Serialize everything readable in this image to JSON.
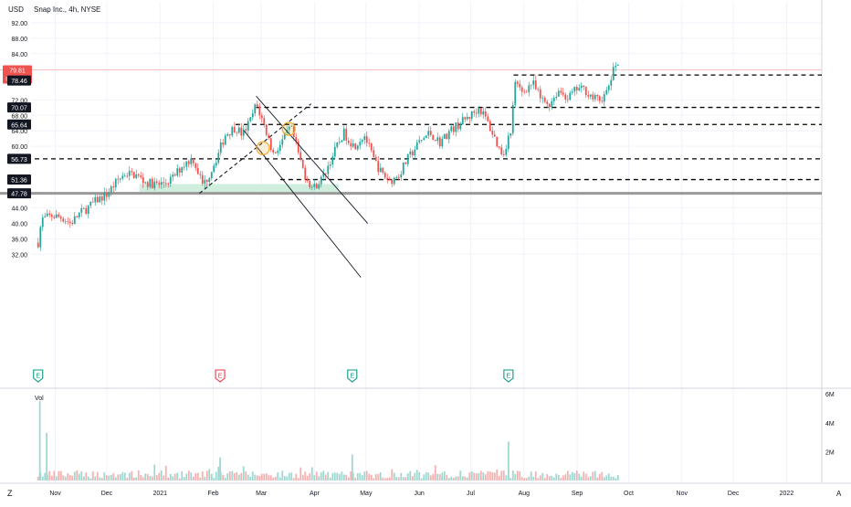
{
  "header": {
    "currency": "USD",
    "symbol_line": "Snap Inc., 4h, NYSE"
  },
  "colors": {
    "up": "#26a69a",
    "down": "#ef5350",
    "vol_up": "#9fd7d1",
    "vol_down": "#f4b1b0",
    "support_zone": "#cfeedd",
    "level_line": "#000000",
    "base_line": "#999999",
    "price_badge": "#ef5350",
    "level_badge": "#131722",
    "earnings_teal": "#089981",
    "earnings_red": "#f23645",
    "circle_marker": "#f5a623"
  },
  "chart_data": {
    "type": "candlestick",
    "title": "Snap Inc., 4h, NYSE",
    "x_ticks": [
      "Nov",
      "Dec",
      "2021",
      "Feb",
      "Mar",
      "Apr",
      "May",
      "Jun",
      "Jul",
      "Aug",
      "Sep",
      "Oct",
      "Nov",
      "Dec",
      "2022"
    ],
    "y_ticks": [
      "32.00",
      "36.00",
      "40.00",
      "44.00",
      "48.00",
      "60.00",
      "64.00",
      "68.00",
      "72.00",
      "84.00",
      "88.00",
      "92.00"
    ],
    "ylim": [
      30,
      93
    ],
    "grid": true,
    "current_price": {
      "value": "79.81",
      "countdown": "01:27:08"
    },
    "levels": [
      {
        "value": "78.46",
        "price": 78.46,
        "style": "dashed"
      },
      {
        "value": "70.07",
        "price": 70.07,
        "style": "dashed"
      },
      {
        "value": "65.64",
        "price": 65.64,
        "style": "dashed"
      },
      {
        "value": "56.73",
        "price": 56.73,
        "style": "dashed"
      },
      {
        "value": "51.36",
        "price": 51.36,
        "style": "dashed"
      },
      {
        "value": "47.78",
        "price": 47.78,
        "style": "solid"
      }
    ],
    "support_zone": {
      "low": 47.78,
      "high": 50.2,
      "from": "2020-12-20",
      "to": "2021-04-15"
    },
    "price_path": [
      [
        "2020-10-22",
        35.0
      ],
      [
        "2020-10-24",
        41.0
      ],
      [
        "2020-10-30",
        42.0
      ],
      [
        "2020-11-05",
        41.5
      ],
      [
        "2020-11-10",
        40.0
      ],
      [
        "2020-11-15",
        42.5
      ],
      [
        "2020-11-20",
        44.0
      ],
      [
        "2020-11-25",
        46.0
      ],
      [
        "2020-12-01",
        47.5
      ],
      [
        "2020-12-07",
        51.0
      ],
      [
        "2020-12-12",
        53.0
      ],
      [
        "2020-12-18",
        52.5
      ],
      [
        "2020-12-24",
        50.5
      ],
      [
        "2021-01-01",
        50.0
      ],
      [
        "2021-01-08",
        51.5
      ],
      [
        "2021-01-14",
        55.0
      ],
      [
        "2021-01-20",
        57.0
      ],
      [
        "2021-01-26",
        50.0
      ],
      [
        "2021-01-29",
        52.0
      ],
      [
        "2021-02-03",
        57.0
      ],
      [
        "2021-02-08",
        63.0
      ],
      [
        "2021-02-14",
        65.0
      ],
      [
        "2021-02-18",
        63.0
      ],
      [
        "2021-02-23",
        67.0
      ],
      [
        "2021-02-26",
        71.0
      ],
      [
        "2021-03-03",
        65.0
      ],
      [
        "2021-03-08",
        58.0
      ],
      [
        "2021-03-13",
        61.0
      ],
      [
        "2021-03-18",
        65.0
      ],
      [
        "2021-03-22",
        59.0
      ],
      [
        "2021-03-26",
        53.0
      ],
      [
        "2021-03-31",
        49.0
      ],
      [
        "2021-04-06",
        52.0
      ],
      [
        "2021-04-12",
        58.0
      ],
      [
        "2021-04-18",
        63.5
      ],
      [
        "2021-04-24",
        60.0
      ],
      [
        "2021-04-30",
        63.0
      ],
      [
        "2021-05-05",
        57.0
      ],
      [
        "2021-05-10",
        53.0
      ],
      [
        "2021-05-15",
        51.0
      ],
      [
        "2021-05-20",
        52.5
      ],
      [
        "2021-05-25",
        56.5
      ],
      [
        "2021-06-01",
        61.0
      ],
      [
        "2021-06-07",
        63.5
      ],
      [
        "2021-06-13",
        61.0
      ],
      [
        "2021-06-19",
        64.0
      ],
      [
        "2021-06-25",
        66.0
      ],
      [
        "2021-07-01",
        68.0
      ],
      [
        "2021-07-06",
        70.0
      ],
      [
        "2021-07-10",
        67.0
      ],
      [
        "2021-07-14",
        63.0
      ],
      [
        "2021-07-18",
        59.0
      ],
      [
        "2021-07-20",
        58.0
      ],
      [
        "2021-07-23",
        62.5
      ],
      [
        "2021-07-25",
        63.0
      ],
      [
        "2021-07-26",
        76.5
      ],
      [
        "2021-07-31",
        74.0
      ],
      [
        "2021-08-06",
        76.5
      ],
      [
        "2021-08-11",
        72.0
      ],
      [
        "2021-08-16",
        71.0
      ],
      [
        "2021-08-21",
        74.5
      ],
      [
        "2021-08-27",
        72.5
      ],
      [
        "2021-09-01",
        75.0
      ],
      [
        "2021-09-06",
        74.5
      ],
      [
        "2021-09-10",
        72.5
      ],
      [
        "2021-09-14",
        72.0
      ],
      [
        "2021-09-18",
        73.5
      ],
      [
        "2021-09-21",
        78.0
      ],
      [
        "2021-09-24",
        82.0
      ],
      [
        "2021-09-26",
        79.8
      ]
    ],
    "annotations": {
      "channel_lines": [
        [
          [
            "2021-02-19",
            64.0
          ],
          [
            "2021-04-28",
            26.0
          ]
        ],
        [
          [
            "2021-02-26",
            73.0
          ],
          [
            "2021-05-02",
            40.0
          ]
        ]
      ],
      "rising_line": [
        [
          "2021-01-24",
          47.8
        ],
        [
          "2021-03-30",
          71.0
        ]
      ],
      "circle_markers": [
        [
          "2021-03-02",
          59.5
        ],
        [
          "2021-03-17",
          64.5
        ]
      ],
      "earnings_markers": [
        {
          "date": "2020-10-22",
          "label": "E",
          "color": "teal"
        },
        {
          "date": "2021-02-05",
          "label": "E",
          "color": "red"
        },
        {
          "date": "2021-04-23",
          "label": "E",
          "color": "teal"
        },
        {
          "date": "2021-07-23",
          "label": "E",
          "color": "teal"
        }
      ]
    },
    "volume": {
      "label": "Vol",
      "y_ticks": [
        "6M",
        "4M",
        "2M"
      ],
      "spikes": [
        [
          "2020-10-23",
          5.5
        ],
        [
          "2020-10-27",
          3.3
        ],
        [
          "2021-02-05",
          1.6
        ],
        [
          "2021-04-23",
          1.8
        ],
        [
          "2021-07-23",
          2.7
        ]
      ]
    }
  }
}
